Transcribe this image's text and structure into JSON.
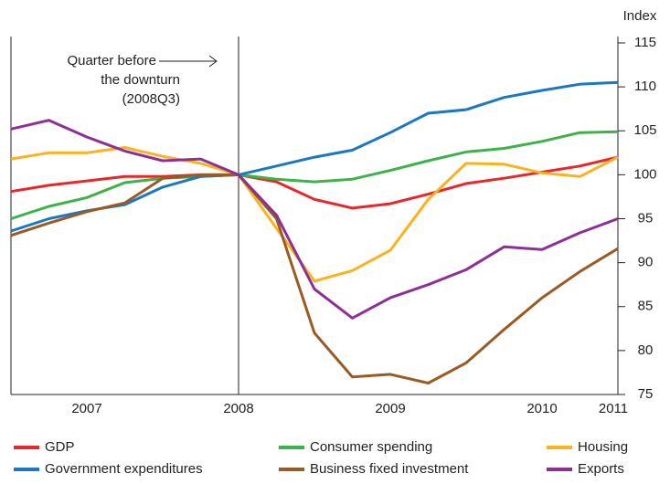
{
  "chart_data": {
    "type": "line",
    "y_axis_label": "Index",
    "annotation": "Quarter before\nthe downturn\n(2008Q3)",
    "categories": [
      null,
      null,
      "2007",
      null,
      null,
      null,
      "2008",
      null,
      null,
      null,
      "2009",
      null,
      null,
      null,
      "2010",
      null,
      "2011"
    ],
    "ylim": [
      75,
      115
    ],
    "yticks": [
      75,
      80,
      85,
      90,
      95,
      100,
      105,
      110,
      115
    ],
    "series": [
      {
        "name": "GDP",
        "color": "#e8262b",
        "values": [
          98.1,
          98.8,
          99.3,
          99.8,
          99.8,
          100,
          100,
          99.2,
          97.2,
          96.2,
          96.7,
          97.8,
          99.0,
          99.6,
          100.3,
          101.0,
          102.0
        ]
      },
      {
        "name": "Consumer spending",
        "color": "#3cb24a",
        "values": [
          95.0,
          96.4,
          97.4,
          99.1,
          99.6,
          99.8,
          100,
          99.5,
          99.2,
          99.5,
          100.5,
          101.6,
          102.6,
          103.0,
          103.8,
          104.8,
          104.9
        ]
      },
      {
        "name": "Housing",
        "color": "#fbb21e",
        "values": [
          101.8,
          102.5,
          102.5,
          103.1,
          102.1,
          101.3,
          100,
          93.9,
          87.9,
          89.1,
          91.4,
          97.2,
          101.3,
          101.2,
          100.2,
          99.8,
          102.0
        ]
      },
      {
        "name": "Government expenditures",
        "color": "#1a78c2",
        "values": [
          93.6,
          95.0,
          95.9,
          96.6,
          98.6,
          99.8,
          100,
          101.0,
          102.0,
          102.8,
          104.8,
          107.0,
          107.4,
          108.8,
          109.6,
          110.3,
          110.5
        ]
      },
      {
        "name": "Business fixed investment",
        "color": "#9b5a23",
        "values": [
          93.1,
          94.5,
          95.8,
          96.8,
          99.6,
          100,
          100,
          95.0,
          82.0,
          77.0,
          77.3,
          76.3,
          78.6,
          82.4,
          86.0,
          89.0,
          91.6
        ]
      },
      {
        "name": "Exports",
        "color": "#8e2f96",
        "values": [
          105.2,
          106.2,
          104.3,
          102.7,
          101.6,
          101.8,
          100,
          95.4,
          87.0,
          83.7,
          86.0,
          87.5,
          89.2,
          91.8,
          91.5,
          93.4,
          95.0
        ]
      }
    ]
  }
}
